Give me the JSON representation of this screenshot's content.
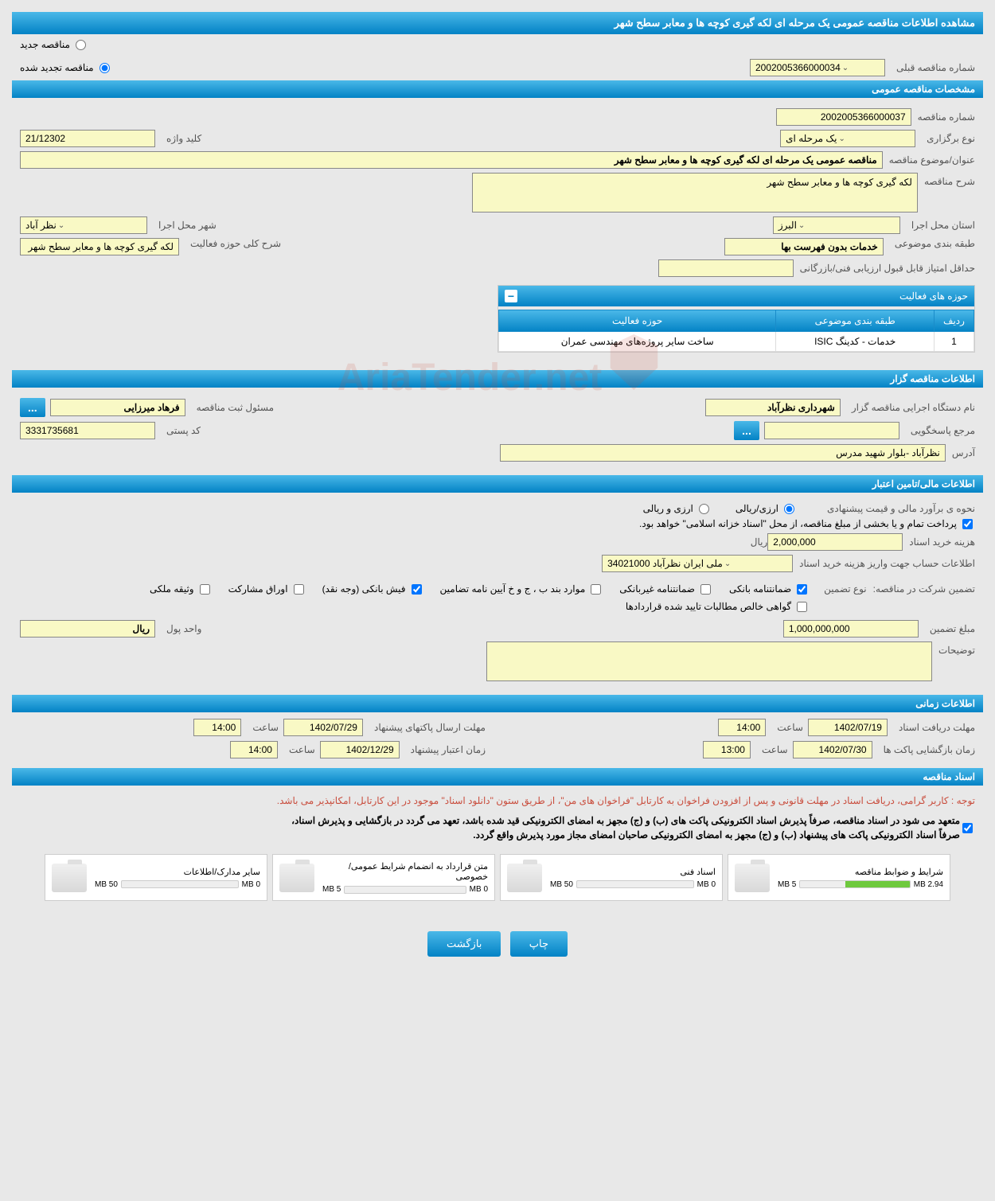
{
  "page_title": "مشاهده اطلاعات مناقصه عمومی یک مرحله ای لکه گیری کوچه ها و معابر سطح شهر",
  "top_radio": {
    "new_label": "مناقصه جدید",
    "renewed_label": "مناقصه تجدید شده",
    "prev_number_label": "شماره مناقصه قبلی",
    "prev_number_value": "2002005366000034"
  },
  "sections": {
    "specs": "مشخصات مناقصه عمومی",
    "org": "اطلاعات مناقصه گزار",
    "finance": "اطلاعات مالی/تامین اعتبار",
    "time": "اطلاعات زمانی",
    "docs": "اسناد مناقصه"
  },
  "specs": {
    "tender_no_label": "شماره مناقصه",
    "tender_no": "2002005366000037",
    "type_label": "نوع برگزاری",
    "type_value": "یک مرحله ای",
    "keyword_label": "کلید واژه",
    "keyword_value": "21/12302",
    "subject_label": "عنوان/موضوع مناقصه",
    "subject_value": "مناقصه عمومی یک مرحله ای لکه گیری کوچه ها و معابر سطح شهر",
    "desc_label": "شرح مناقصه",
    "desc_value": "لکه گیری کوچه ها و معابر سطح شهر",
    "province_label": "استان محل اجرا",
    "province_value": "البرز",
    "city_label": "شهر محل اجرا",
    "city_value": "نظر آباد",
    "category_label": "طبقه بندی موضوعی",
    "category_value": "خدمات بدون فهرست بها",
    "activity_desc_label": "شرح کلی حوزه فعالیت",
    "activity_desc_value": "لکه گیری کوچه ها و معابر سطح شهر",
    "min_score_label": "حداقل امتیاز قابل قبول ارزیابی فنی/بازرگانی",
    "activity_panel_title": "حوزه های فعالیت",
    "table": {
      "col_row": "ردیف",
      "col_category": "طبقه بندی موضوعی",
      "col_activity": "حوزه فعالیت",
      "rows": [
        {
          "n": "1",
          "cat": "خدمات - کدینگ ISIC",
          "act": "ساخت سایر پروژه‌های مهندسی عمران"
        }
      ]
    }
  },
  "org": {
    "org_label": "نام دستگاه اجرایی مناقصه گزار",
    "org_value": "شهرداری نظرآباد",
    "registrar_label": "مسئول ثبت مناقصه",
    "registrar_value": "فرهاد  میرزایی",
    "responder_label": "مرجع پاسخگویی",
    "postal_label": "کد پستی",
    "postal_value": "3331735681",
    "address_label": "آدرس",
    "address_value": "نظرآباد -بلوار شهید مدرس"
  },
  "finance": {
    "method_label": "نحوه ی برآورد مالی و قیمت پیشنهادی",
    "radio_rial": "ارزی/ریالی",
    "radio_curr": "ارزی و ریالی",
    "payment_note": "پرداخت تمام و یا بخشی از مبلغ مناقصه، از محل \"اسناد خزانه اسلامی\" خواهد بود.",
    "doc_cost_label": "هزینه خرید اسناد",
    "doc_cost_value": "2,000,000",
    "rial_unit": "ریال",
    "account_label": "اطلاعات حساب جهت واریز هزینه خرید اسناد",
    "account_value": "ملی ایران نظرآباد 34021000",
    "guarantee_label": "تضمین شرکت در مناقصه:",
    "guarantee_type_label": "نوع تضمین",
    "chk_bank": "ضمانتنامه بانکی",
    "chk_nonbank": "ضمانتنامه غیربانکی",
    "chk_bond": "موارد بند ب ، ج و خ آیین نامه تضامین",
    "chk_fish": "فیش بانکی (وجه نقد)",
    "chk_participation": "اوراق مشارکت",
    "chk_property": "وثیقه ملکی",
    "chk_cert": "گواهی خالص مطالبات تایید شده قراردادها",
    "guarantee_amount_label": "مبلغ تضمین",
    "guarantee_amount_value": "1,000,000,000",
    "unit_label": "واحد پول",
    "unit_value": "ریال",
    "notes_label": "توضیحات"
  },
  "time": {
    "receive_label": "مهلت دریافت اسناد",
    "receive_date": "1402/07/19",
    "receive_time_label": "ساعت",
    "receive_time": "14:00",
    "send_label": "مهلت ارسال پاکتهای پیشنهاد",
    "send_date": "1402/07/29",
    "send_time_label": "ساعت",
    "send_time": "14:00",
    "open_label": "زمان بازگشایی پاکت ها",
    "open_date": "1402/07/30",
    "open_time_label": "ساعت",
    "open_time": "13:00",
    "validity_label": "زمان اعتبار پیشنهاد",
    "validity_date": "1402/12/29",
    "validity_time_label": "ساعت",
    "validity_time": "14:00"
  },
  "docs": {
    "note_red": "توجه : کاربر گرامی، دریافت اسناد در مهلت قانونی و پس از افزودن فراخوان به کارتابل \"فراخوان های من\"، از طریق ستون \"دانلود اسناد\" موجود در این کارتابل، امکانپذیر می باشد.",
    "note1": "متعهد می شود در اسناد مناقصه، صرفاً پذیرش اسناد الکترونیکی پاکت های (ب) و (ج) مجهز به امضای الکترونیکی قید شده باشد، تعهد می گردد در بازگشایی و پذیرش اسناد،",
    "note2": "صرفاً اسناد الکترونیکی پاکت های پیشنهاد (ب) و (ج) مجهز به امضای الکترونیکی صاحبان امضای مجاز مورد پذیرش واقع گردد.",
    "cards": [
      {
        "title": "شرایط و ضوابط مناقصه",
        "used": "2.94 MB",
        "total": "5 MB",
        "pct": 59
      },
      {
        "title": "اسناد فنی",
        "used": "0 MB",
        "total": "50 MB",
        "pct": 0
      },
      {
        "title": "متن قرارداد به انضمام شرایط عمومی/خصوصی",
        "used": "0 MB",
        "total": "5 MB",
        "pct": 0
      },
      {
        "title": "سایر مدارک/اطلاعات",
        "used": "0 MB",
        "total": "50 MB",
        "pct": 0
      }
    ]
  },
  "buttons": {
    "print": "چاپ",
    "back": "بازگشت",
    "dots": "..."
  },
  "watermark": "AriaTender.net"
}
